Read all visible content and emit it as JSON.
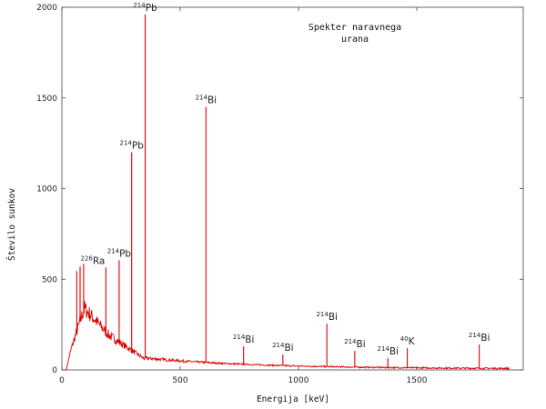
{
  "chart_data": {
    "type": "line",
    "title_lines": [
      "Spekter naravnega",
      "urana"
    ],
    "xlabel": "Energija [keV]",
    "ylabel": "Število sunkov",
    "xlim": [
      0,
      1950
    ],
    "ylim": [
      0,
      2000
    ],
    "x_ticks": [
      "0",
      "500",
      "1000",
      "1500"
    ],
    "y_ticks": [
      "0",
      "500",
      "1000",
      "1500",
      "2000"
    ],
    "line_color": "#dd0000",
    "grid": false,
    "peaks": [
      {
        "x": 63,
        "y": 545
      },
      {
        "x": 77,
        "y": 570
      },
      {
        "x": 92,
        "y": 585
      },
      {
        "x": 186,
        "y": 565,
        "label": {
          "sup": "226",
          "el": "Ra",
          "side": "left"
        }
      },
      {
        "x": 242,
        "y": 605,
        "label": {
          "sup": "214",
          "el": "Pb",
          "side": "center"
        }
      },
      {
        "x": 295,
        "y": 1200,
        "label": {
          "sup": "214",
          "el": "Pb",
          "side": "center"
        }
      },
      {
        "x": 352,
        "y": 1960,
        "label": {
          "sup": "214",
          "el": "Pb",
          "side": "center"
        }
      },
      {
        "x": 609,
        "y": 1450,
        "label": {
          "sup": "214",
          "el": "Bi",
          "side": "center"
        }
      },
      {
        "x": 768,
        "y": 130,
        "label": {
          "sup": "214",
          "el": "Bi",
          "side": "center"
        }
      },
      {
        "x": 934,
        "y": 85,
        "label": {
          "sup": "214",
          "el": "Bi",
          "side": "center"
        }
      },
      {
        "x": 1120,
        "y": 255,
        "label": {
          "sup": "214",
          "el": "Bi",
          "side": "center"
        }
      },
      {
        "x": 1238,
        "y": 105,
        "label": {
          "sup": "214",
          "el": "Bi",
          "side": "center"
        }
      },
      {
        "x": 1378,
        "y": 65,
        "label": {
          "sup": "214",
          "el": "Bi",
          "side": "center"
        }
      },
      {
        "x": 1460,
        "y": 120,
        "label": {
          "sup": "40",
          "el": "K",
          "side": "center"
        }
      },
      {
        "x": 1764,
        "y": 140,
        "label": {
          "sup": "214",
          "el": "Bi",
          "side": "center"
        }
      }
    ]
  }
}
